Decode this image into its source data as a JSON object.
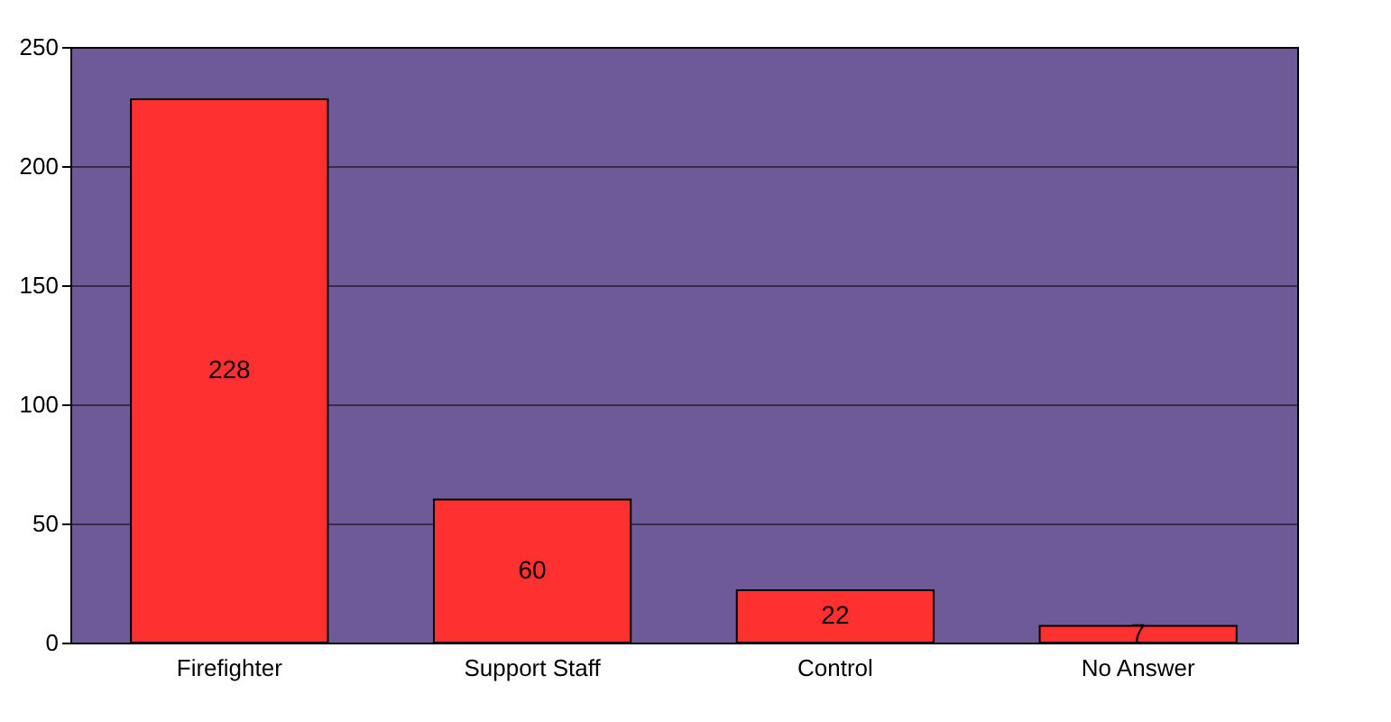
{
  "chart_data": {
    "type": "bar",
    "categories": [
      "Firefighter",
      "Support Staff",
      "Control",
      "No Answer"
    ],
    "values": [
      228,
      60,
      22,
      7
    ],
    "color": "#ff3030",
    "ylim": [
      0,
      250
    ],
    "yticks": [
      0,
      50,
      100,
      150,
      200,
      250
    ],
    "grid": "y",
    "data_labels": true
  }
}
